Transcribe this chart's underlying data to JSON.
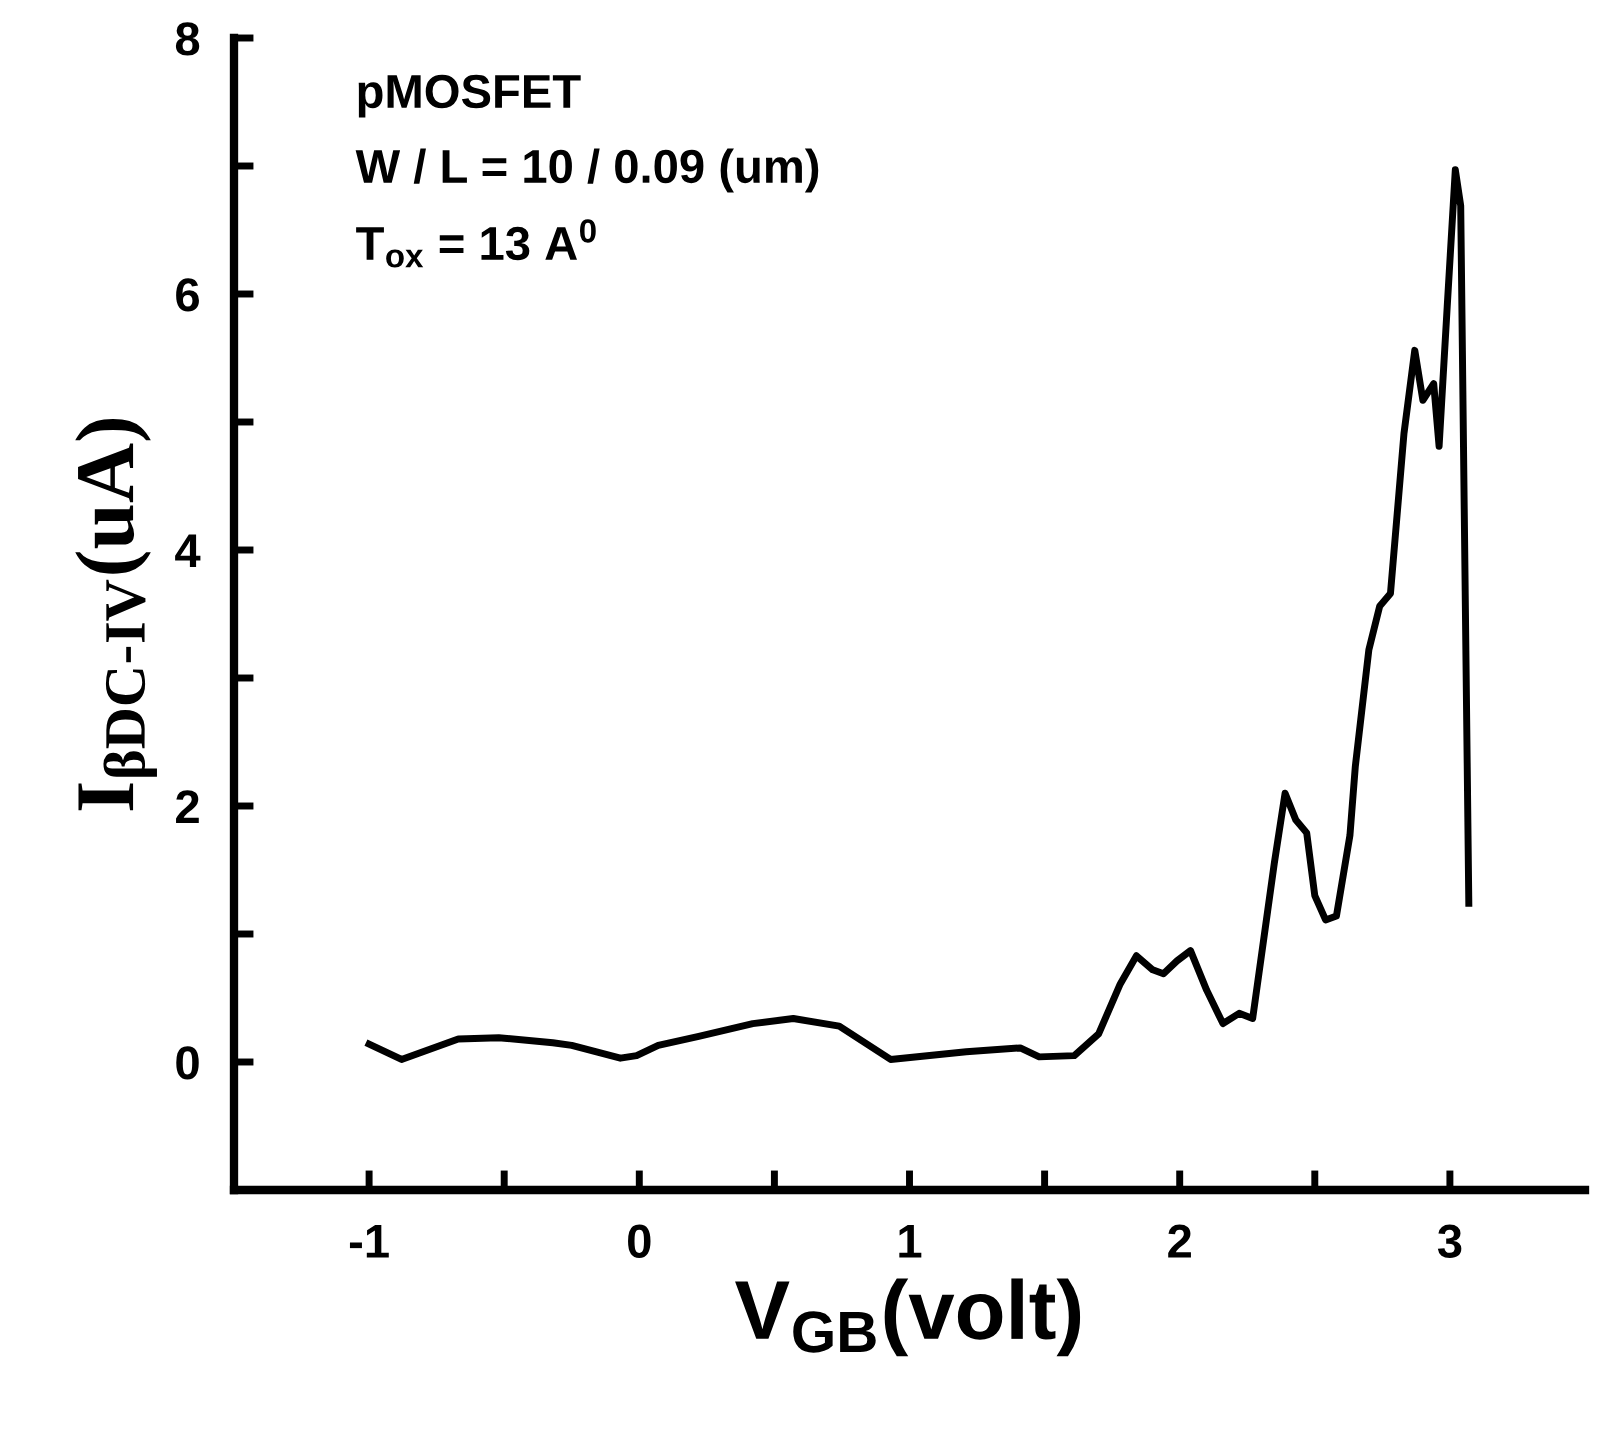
{
  "chart_data": {
    "type": "line",
    "xlabel": "V$_{GB}$(volt)",
    "ylabel": "I$_{βDC-IV}$(uA)",
    "annotations": [
      "pMOSFET",
      "W / L = 10 / 0.09 (um)",
      "T$_{ox}$ = 13 A$^{0}$"
    ],
    "series": [
      {
        "color": "#000000",
        "x": [
          -1.0,
          -0.88,
          -0.67,
          -0.52,
          -0.32,
          -0.25,
          -0.07,
          -0.01,
          0.07,
          0.22,
          0.42,
          0.57,
          0.74,
          0.93,
          1.21,
          1.41,
          1.48,
          1.61,
          1.7,
          1.78,
          1.84,
          1.9,
          1.94,
          1.99,
          2.04,
          2.1,
          2.16,
          2.22,
          2.27,
          2.35,
          2.39,
          2.43,
          2.47,
          2.5,
          2.54,
          2.58,
          2.63,
          2.65,
          2.7,
          2.74,
          2.78,
          2.83,
          2.87,
          2.9,
          2.94,
          2.96,
          2.99,
          3.02,
          3.04,
          3.07
        ],
        "values": [
          0.14,
          0.02,
          0.18,
          0.19,
          0.15,
          0.13,
          0.03,
          0.05,
          0.13,
          0.2,
          0.3,
          0.34,
          0.28,
          0.02,
          0.08,
          0.11,
          0.04,
          0.05,
          0.22,
          0.61,
          0.83,
          0.72,
          0.69,
          0.79,
          0.87,
          0.56,
          0.3,
          0.38,
          0.34,
          1.55,
          2.1,
          1.89,
          1.79,
          1.3,
          1.11,
          1.14,
          1.77,
          2.31,
          3.22,
          3.56,
          3.66,
          4.91,
          5.56,
          5.17,
          5.3,
          4.81,
          5.9,
          6.97,
          6.69,
          1.24
        ]
      }
    ],
    "xlim": [
      -1.5,
      3.5
    ],
    "ylim": [
      -1,
      8
    ],
    "xticks": [
      -1,
      {
        "value": -0.5,
        "label": null
      },
      0,
      {
        "value": 0.5,
        "label": null
      },
      1,
      {
        "value": 1.5,
        "label": null
      },
      2,
      {
        "value": 2.5,
        "label": null
      },
      3
    ],
    "yticks": [
      0,
      {
        "value": 1,
        "label": null
      },
      2,
      {
        "value": 3,
        "label": null
      },
      4,
      {
        "value": 5,
        "label": null
      },
      6,
      {
        "value": 7,
        "label": null
      },
      8
    ],
    "grid": false,
    "legend": false,
    "marker": "none",
    "line_style": "solid"
  }
}
